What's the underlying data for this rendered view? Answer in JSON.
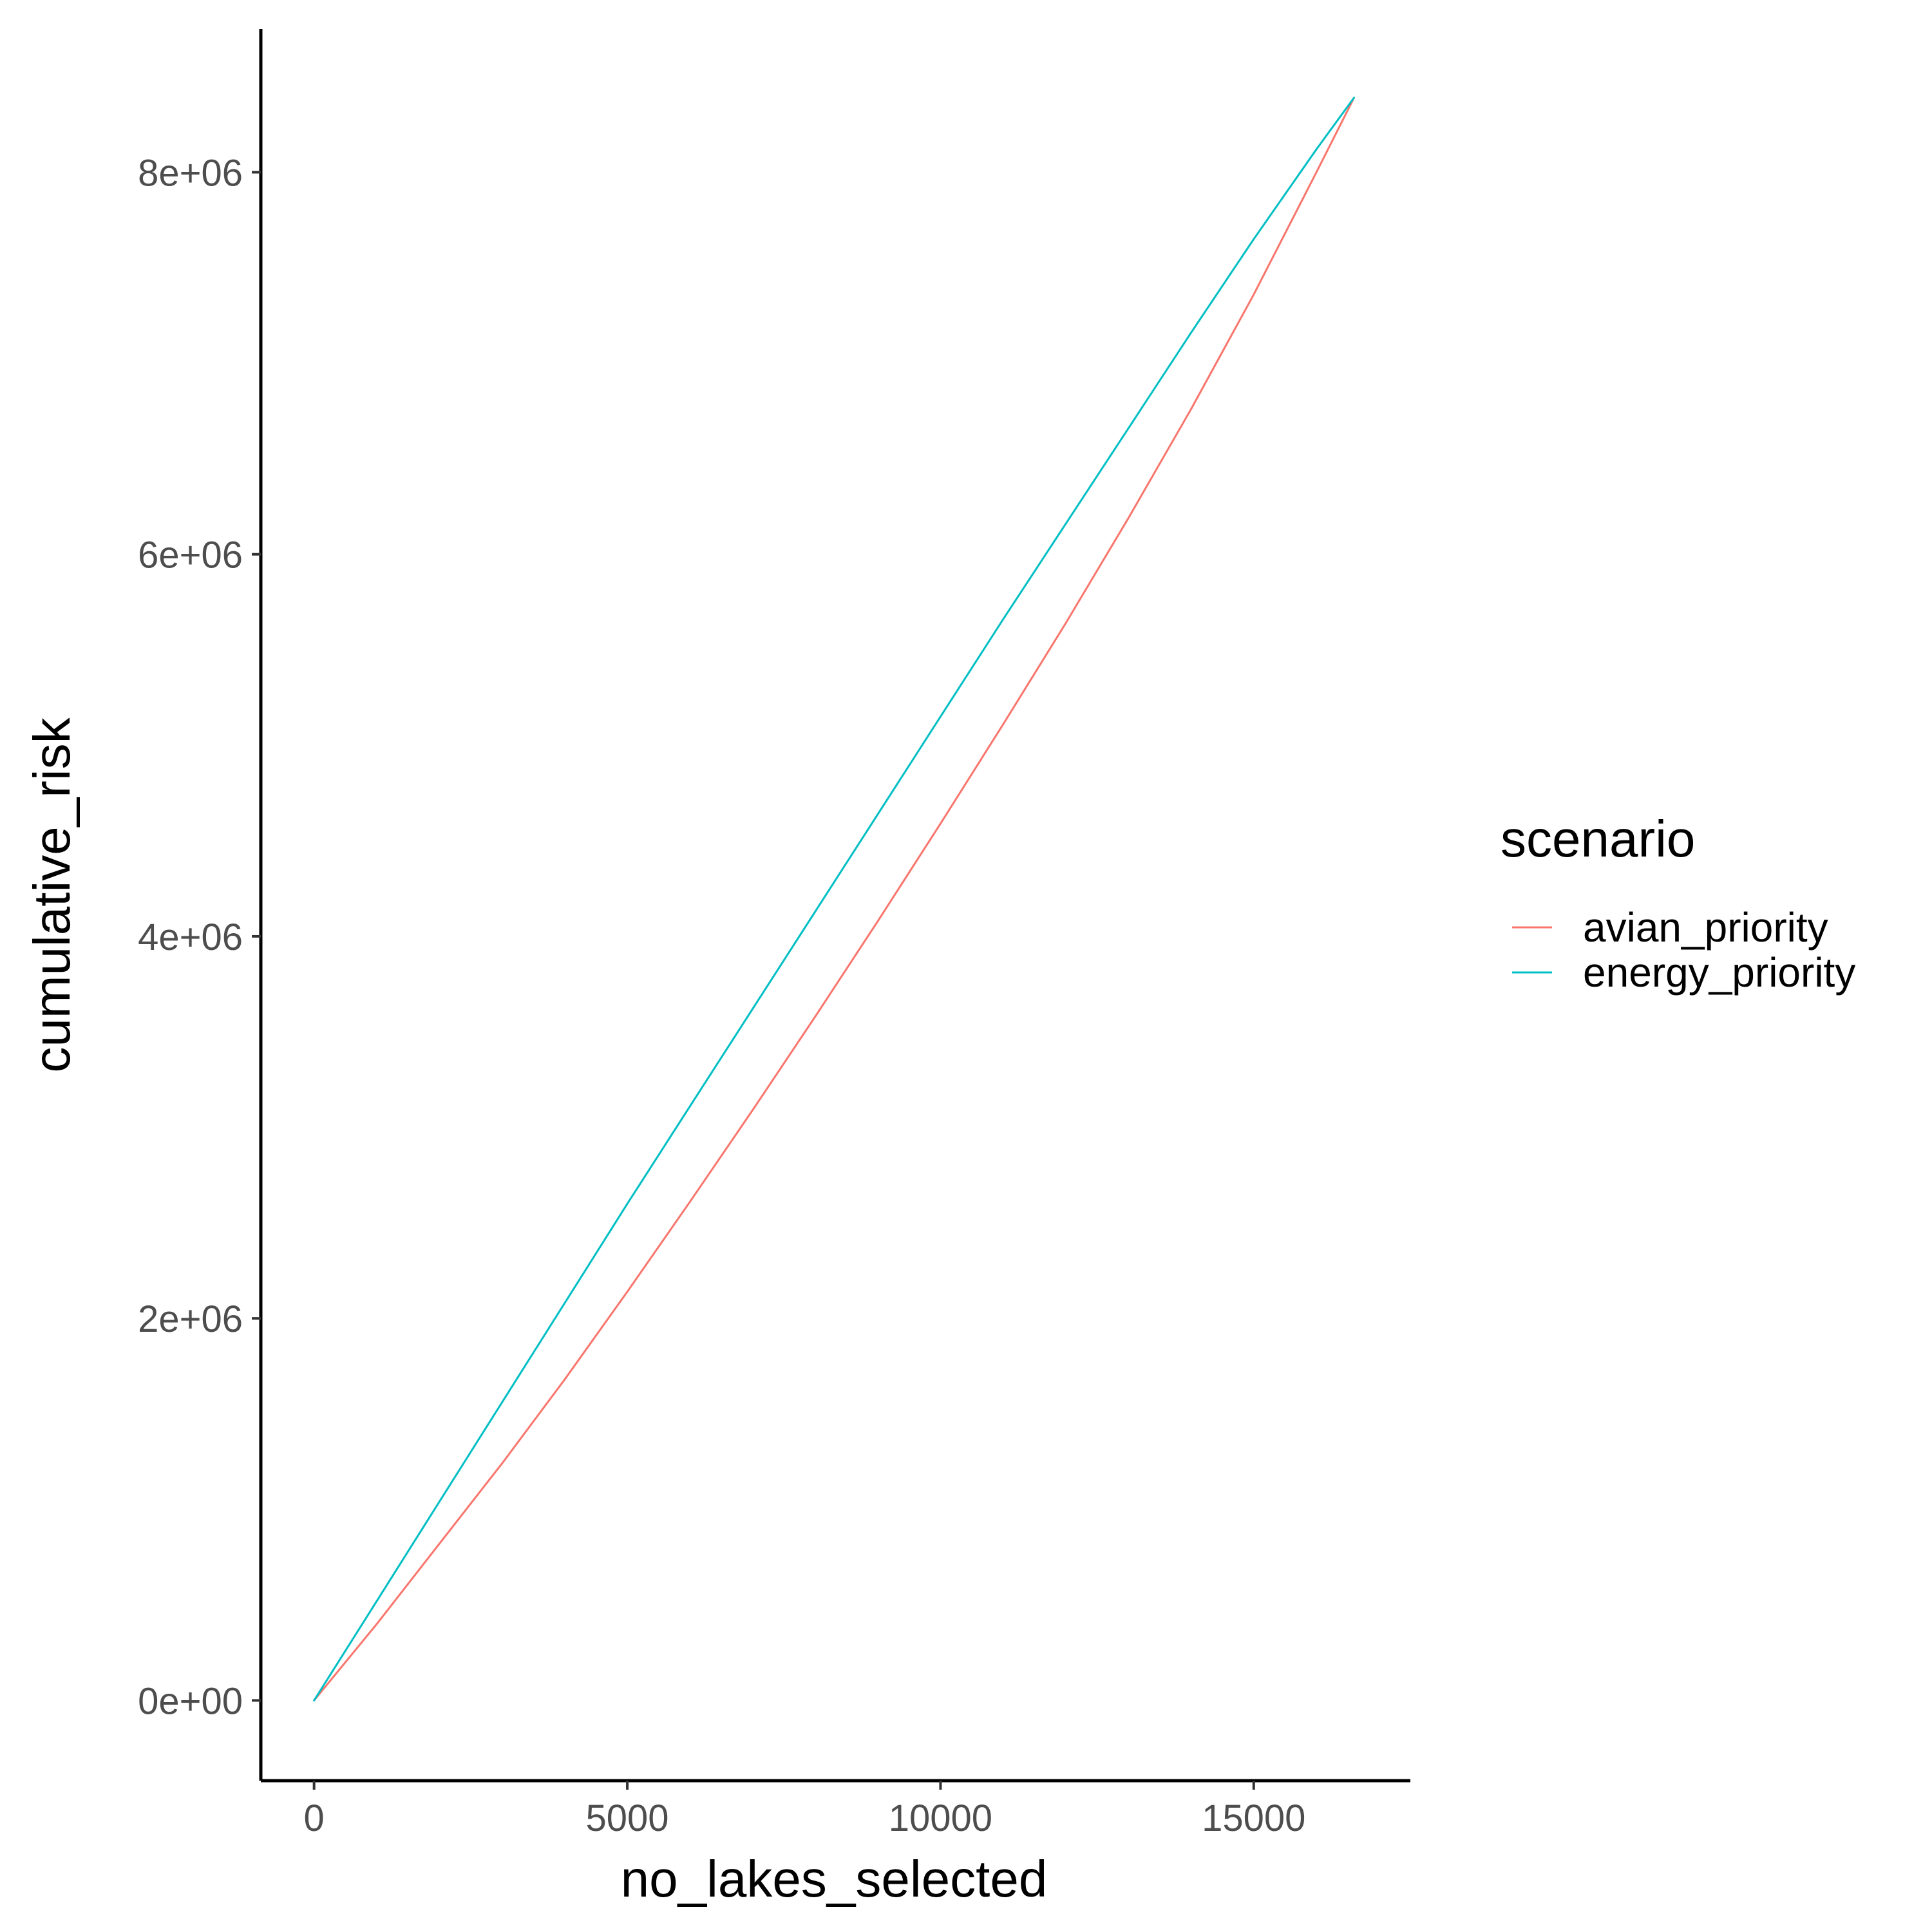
{
  "chart_data": {
    "type": "line",
    "xlabel": "no_lakes_selected",
    "ylabel": "cumulative_risk",
    "xlim": [
      -850,
      17500
    ],
    "ylim": [
      -420000,
      8750000
    ],
    "x_ticks": [
      0,
      5000,
      10000,
      15000
    ],
    "x_tick_labels": [
      "0",
      "5000",
      "10000",
      "15000"
    ],
    "y_ticks": [
      0,
      2000000,
      4000000,
      6000000,
      8000000
    ],
    "y_tick_labels": [
      "0e+00",
      "2e+06",
      "4e+06",
      "6e+06",
      "8e+06"
    ],
    "grid": false,
    "legend": {
      "title": "scenario",
      "position": "right"
    },
    "series": [
      {
        "name": "avian_priority",
        "color": "#F8766D",
        "x": [
          0,
          1000,
          2000,
          3000,
          4000,
          5000,
          6000,
          7000,
          8000,
          9000,
          10000,
          11000,
          12000,
          13000,
          14000,
          15000,
          16000,
          16600
        ],
        "y": [
          0,
          400000,
          820000,
          1240000,
          1680000,
          2140000,
          2610000,
          3090000,
          3580000,
          4080000,
          4590000,
          5110000,
          5640000,
          6190000,
          6760000,
          7360000,
          8000000,
          8390000
        ]
      },
      {
        "name": "energy_priority",
        "color": "#00BFC4",
        "x": [
          0,
          1000,
          2000,
          3000,
          4000,
          5000,
          6000,
          7000,
          8000,
          9000,
          10000,
          11000,
          12000,
          13000,
          14000,
          15000,
          16000,
          16600
        ],
        "y": [
          0,
          520000,
          1040000,
          1560000,
          2080000,
          2600000,
          3110000,
          3620000,
          4130000,
          4640000,
          5150000,
          5660000,
          6160000,
          6660000,
          7160000,
          7650000,
          8120000,
          8390000
        ]
      }
    ]
  }
}
